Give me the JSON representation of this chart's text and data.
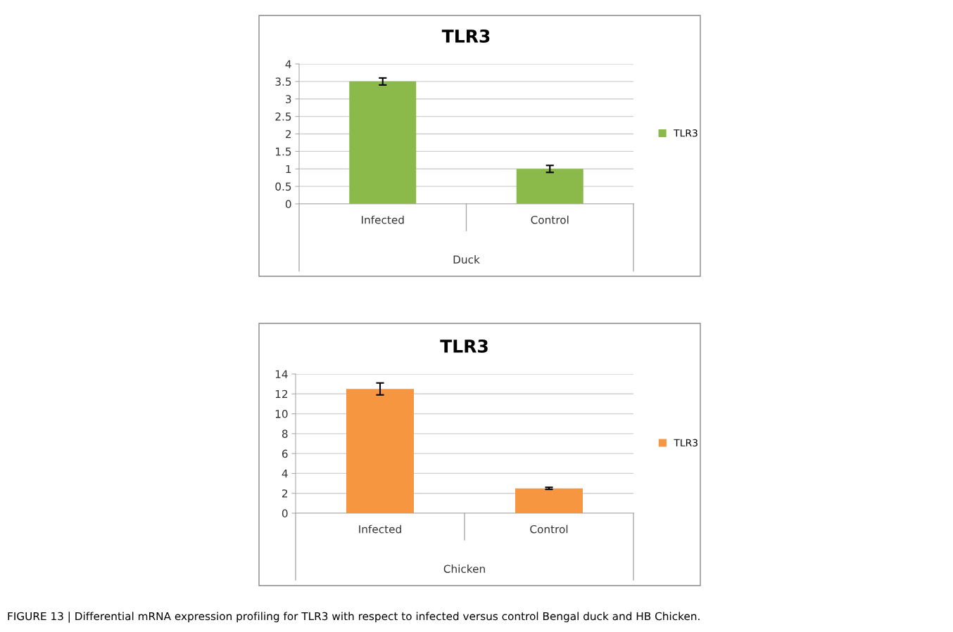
{
  "chart_data": [
    {
      "type": "bar",
      "title": "TLR3",
      "categories": [
        "Infected",
        "Control"
      ],
      "xlabel": "Duck",
      "series": [
        {
          "name": "TLR3",
          "color": "#8bb94a",
          "values": [
            3.5,
            1.0
          ],
          "errors": [
            0.1,
            0.1
          ]
        }
      ],
      "ylim": [
        0,
        4
      ],
      "yticks": [
        0,
        0.5,
        1,
        1.5,
        2,
        2.5,
        3,
        3.5,
        4
      ],
      "grid": "y",
      "legend": "right"
    },
    {
      "type": "bar",
      "title": "TLR3",
      "categories": [
        "Infected",
        "Control"
      ],
      "xlabel": "Chicken",
      "series": [
        {
          "name": "TLR3",
          "color": "#f79640",
          "values": [
            12.5,
            2.5
          ],
          "errors": [
            0.6,
            0.1
          ]
        }
      ],
      "ylim": [
        0,
        14
      ],
      "yticks": [
        0,
        2,
        4,
        6,
        8,
        10,
        12,
        14
      ],
      "grid": "y",
      "legend": "right",
      "annotations": [
        "FIGURE 13 | Differential mRNA expression profiling for TLR3 with respect to infected versus control Bengal duck and HB Chicken."
      ]
    }
  ]
}
